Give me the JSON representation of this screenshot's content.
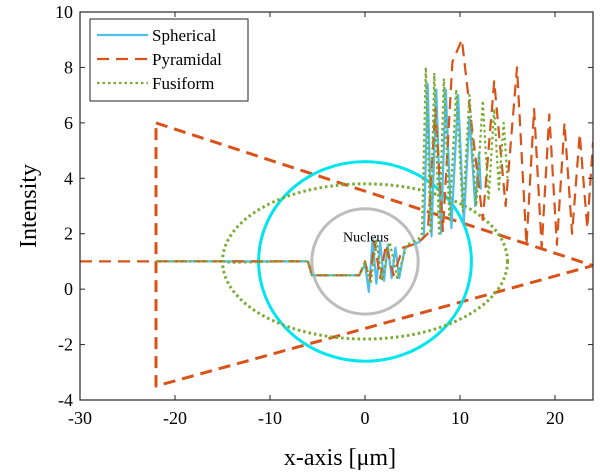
{
  "chart_data": {
    "type": "line",
    "xlabel": "x-axis [μm]",
    "ylabel": "Intensity",
    "xlim": [
      -30,
      24
    ],
    "ylim": [
      -4,
      10
    ],
    "xticks": [
      -30,
      -20,
      -10,
      0,
      10,
      20
    ],
    "yticks": [
      -4,
      -2,
      0,
      2,
      4,
      6,
      8,
      10
    ],
    "grid": false,
    "legend_position": "top-left",
    "annotations": [
      {
        "text": "Nucleus",
        "x": 0.1,
        "y": 1.9
      }
    ],
    "series": [
      {
        "name": "Spherical",
        "color": "#4DBEEE",
        "style": "solid",
        "points": [
          [
            -22,
            1.0
          ],
          [
            -6,
            1.0
          ],
          [
            -5.6,
            0.5
          ],
          [
            -0.6,
            0.5
          ],
          [
            0,
            0.9
          ],
          [
            0.4,
            -0.1
          ],
          [
            0.8,
            1.8
          ],
          [
            1.2,
            0.2
          ],
          [
            1.6,
            1.7
          ],
          [
            2.0,
            0.3
          ],
          [
            2.4,
            1.6
          ],
          [
            2.8,
            0.4
          ],
          [
            3.2,
            1.5
          ],
          [
            3.6,
            0.4
          ],
          [
            4.2,
            1.5
          ],
          [
            5.0,
            1.6
          ],
          [
            5.7,
            1.7
          ],
          [
            6.2,
            1.9
          ],
          [
            6.6,
            7.4
          ],
          [
            7.0,
            1.9
          ],
          [
            7.5,
            7.2
          ],
          [
            8.0,
            2.0
          ],
          [
            8.5,
            7.2
          ],
          [
            9.1,
            2.2
          ],
          [
            9.8,
            7.0
          ],
          [
            10.4,
            2.4
          ],
          [
            11.0,
            6.2
          ],
          [
            11.6,
            3.0
          ],
          [
            12.0,
            4.9
          ],
          [
            12.2,
            3.6
          ]
        ]
      },
      {
        "name": "Pyramidal",
        "color": "#D95319",
        "style": "dashed",
        "points": [
          [
            -30,
            1.0
          ],
          [
            -22,
            1.0
          ],
          [
            -6,
            1.0
          ],
          [
            -5.6,
            0.5
          ],
          [
            -0.6,
            0.5
          ],
          [
            0,
            1.0
          ],
          [
            0.5,
            0.3
          ],
          [
            1.0,
            1.7
          ],
          [
            1.6,
            0.4
          ],
          [
            2.2,
            1.6
          ],
          [
            3.0,
            0.5
          ],
          [
            4.0,
            1.5
          ],
          [
            5.0,
            1.6
          ],
          [
            6.0,
            1.8
          ],
          [
            6.6,
            2.0
          ],
          [
            7.4,
            6.5
          ],
          [
            8.2,
            2.1
          ],
          [
            9.2,
            8.2
          ],
          [
            10.2,
            9.0
          ],
          [
            11.2,
            6.0
          ],
          [
            12.4,
            2.5
          ],
          [
            13.6,
            7.5
          ],
          [
            14.8,
            3.0
          ],
          [
            16.0,
            8.0
          ],
          [
            17.0,
            1.6
          ],
          [
            17.8,
            6.5
          ],
          [
            18.6,
            1.5
          ],
          [
            19.4,
            6.3
          ],
          [
            20.2,
            1.6
          ],
          [
            21.0,
            6.0
          ],
          [
            21.8,
            2.0
          ],
          [
            22.6,
            5.6
          ],
          [
            23.4,
            2.2
          ],
          [
            24.0,
            5.3
          ]
        ]
      },
      {
        "name": "Fusiform",
        "color": "#77AC30",
        "style": "dotted",
        "points": [
          [
            -22,
            1.0
          ],
          [
            -15,
            1.0
          ],
          [
            -14,
            0.95
          ],
          [
            -9,
            1.0
          ],
          [
            -6,
            1.0
          ],
          [
            -5.6,
            0.5
          ],
          [
            -0.6,
            0.5
          ],
          [
            0,
            1.0
          ],
          [
            0.6,
            0.2
          ],
          [
            1.2,
            1.8
          ],
          [
            1.8,
            0.3
          ],
          [
            2.6,
            1.7
          ],
          [
            3.4,
            0.4
          ],
          [
            4.4,
            1.6
          ],
          [
            5.6,
            1.8
          ],
          [
            6.0,
            2.0
          ],
          [
            6.4,
            8.0
          ],
          [
            6.9,
            2.0
          ],
          [
            7.3,
            7.8
          ],
          [
            7.8,
            2.0
          ],
          [
            8.3,
            7.6
          ],
          [
            8.9,
            2.5
          ],
          [
            9.6,
            7.2
          ],
          [
            10.3,
            2.8
          ],
          [
            11.0,
            7.0
          ],
          [
            11.7,
            3.0
          ],
          [
            12.4,
            6.8
          ],
          [
            13.0,
            3.2
          ],
          [
            13.6,
            6.5
          ],
          [
            14.1,
            3.6
          ],
          [
            14.6,
            6.0
          ],
          [
            15.0,
            4.0
          ]
        ]
      }
    ],
    "shapes": [
      {
        "label": "Pyramidal outline",
        "kind": "polygon",
        "color": "#D95319",
        "style": "dashed",
        "points": [
          [
            -22,
            6.0
          ],
          [
            24,
            0.85
          ],
          [
            -22,
            -3.5
          ]
        ]
      },
      {
        "label": "Spherical outline",
        "kind": "ellipse",
        "color": "#00E5EE",
        "style": "solid",
        "center": [
          0,
          1.0
        ],
        "radii": [
          11.2,
          3.6
        ]
      },
      {
        "label": "Fusiform outline",
        "kind": "ellipse",
        "color": "#77AC30",
        "style": "dotted",
        "center": [
          0,
          1.0
        ],
        "radii": [
          15.0,
          2.8
        ]
      },
      {
        "label": "Nucleus",
        "kind": "ellipse",
        "color": "#BDBDBD",
        "style": "solid",
        "center": [
          0,
          1.0
        ],
        "radii": [
          5.6,
          1.9
        ]
      }
    ]
  }
}
